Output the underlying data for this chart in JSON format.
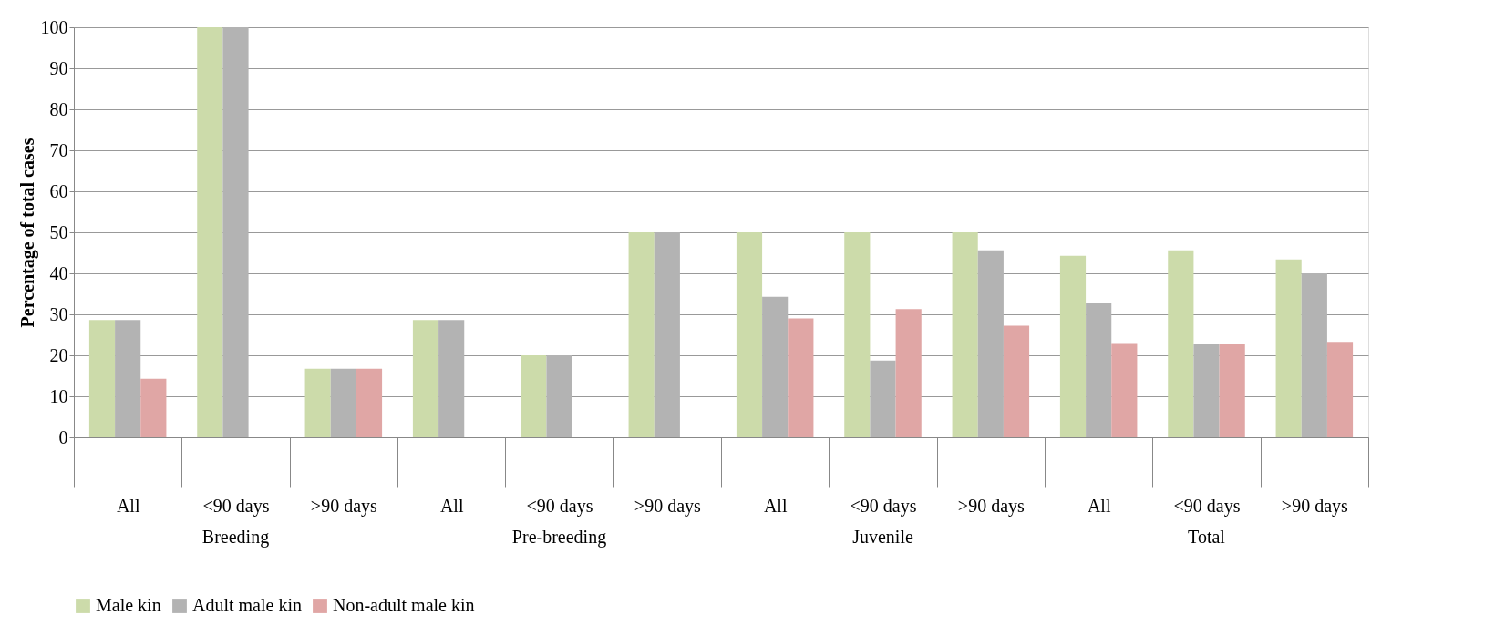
{
  "chart_data": {
    "type": "bar",
    "ylabel": "Percentage of total cases",
    "categories": [
      "All",
      "<90 days",
      ">90 days",
      "All",
      "<90 days",
      ">90 days",
      "All",
      "<90 days",
      ">90 days",
      "All",
      "<90 days",
      ">90 days"
    ],
    "annotations": [
      "Breeding",
      "Pre-breeding",
      "Juvenile",
      "Total"
    ],
    "series": [
      {
        "name": "Male kin",
        "color": "#ccdbaa",
        "values": [
          28.6,
          100,
          16.7,
          28.6,
          20,
          50,
          50,
          50,
          50,
          44.3,
          45.6,
          43.4
        ]
      },
      {
        "name": "Adult male kin",
        "color": "#b3b3b3",
        "values": [
          28.6,
          100,
          16.7,
          28.6,
          20,
          50,
          34.3,
          18.7,
          45.6,
          32.7,
          22.7,
          40.0
        ]
      },
      {
        "name": "Non-adult male kin",
        "color": "#e0a6a5",
        "values": [
          14.3,
          0,
          16.7,
          0,
          0,
          0,
          29.0,
          31.3,
          27.2,
          23.0,
          22.7,
          23.3
        ]
      }
    ],
    "ylim": [
      0,
      100
    ],
    "yticks": [
      0,
      10,
      20,
      30,
      40,
      50,
      60,
      70,
      80,
      90,
      100
    ],
    "grid": "y",
    "legend": "bottom"
  }
}
